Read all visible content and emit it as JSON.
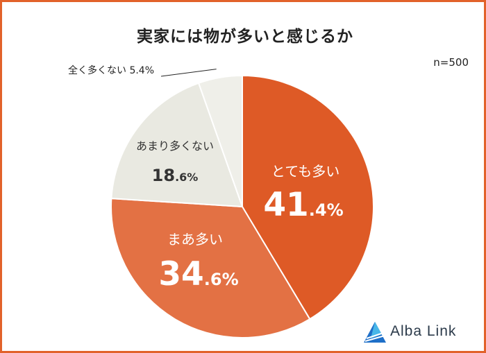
{
  "title": "実家には物が多いと感じるか",
  "sample_size": "n=500",
  "brand": {
    "name": "Alba Link",
    "colors": [
      "#1e6fc8",
      "#48b6e8"
    ]
  },
  "chart_data": {
    "type": "pie",
    "title": "実家には物が多いと感じるか",
    "start": "12 o'clock, clockwise",
    "slices": [
      {
        "label": "とても多い",
        "value": 41.4,
        "int": "41",
        "dec": ".4%",
        "color": "#de5a26",
        "label_color": "#ffffff"
      },
      {
        "label": "まあ多い",
        "value": 34.6,
        "int": "34",
        "dec": ".6%",
        "color": "#e37144",
        "label_color": "#ffffff"
      },
      {
        "label": "あまり多くない",
        "value": 18.6,
        "int": "18",
        "dec": ".6%",
        "color": "#e9e9e1",
        "label_color": "#333333"
      },
      {
        "label": "全く多くない",
        "value": 5.4,
        "text": "全く多くない 5.4%",
        "color": "#efefe9",
        "label_color": "#222222",
        "callout": true
      }
    ],
    "units": "%"
  }
}
